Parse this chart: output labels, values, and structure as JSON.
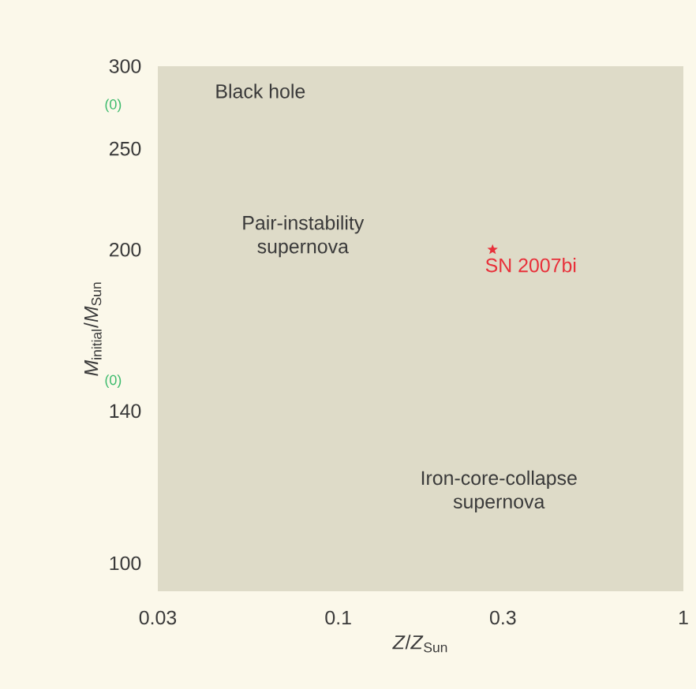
{
  "chart_data": {
    "type": "scatter",
    "xlabel": "*Z*/*Z*$_{Sun}$",
    "ylabel": "*M*$_{initial}$/*M*$_{Sun}$",
    "log": "xy",
    "xlim": [
      0.03,
      1
    ],
    "xticks": [
      0.03,
      0.1,
      0.3,
      1
    ],
    "ylim": [
      94,
      300
    ],
    "yticks": [
      100,
      140,
      200,
      250,
      300
    ],
    "grid": false,
    "legend": false,
    "marker": "star",
    "series": [
      {
        "name": "SN 2007bi",
        "color": "#e8303a",
        "x": [
          0.28
        ],
        "values": [
          200
        ]
      }
    ],
    "annotations": [
      "Black hole",
      "Pair-instability supernova",
      "Iron-core-collapse supernova",
      "(0)",
      "(0)"
    ]
  }
}
